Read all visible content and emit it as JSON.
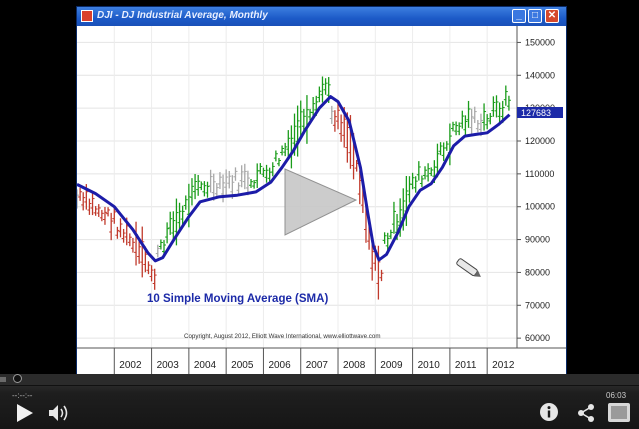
{
  "window": {
    "title": "DJI - DJ Industrial Average, Monthly",
    "minimize_glyph": "_",
    "maximize_glyph": "□",
    "close_glyph": "✕"
  },
  "chart_data": {
    "type": "line",
    "title": "DJI - DJ Industrial Average, Monthly",
    "annotation": "10 Simple Moving Average (SMA)",
    "copyright": "Copyright, August 2012, Elliott Wave International, www.elliottwave.com",
    "x_tick_labels": [
      "2002",
      "2003",
      "2004",
      "2005",
      "2006",
      "2007",
      "2008",
      "2009",
      "2010",
      "2011",
      "2012"
    ],
    "y_tick_labels": [
      "150000",
      "140000",
      "130000",
      "120000",
      "110000",
      "100000",
      "90000",
      "80000",
      "70000",
      "60000"
    ],
    "ylim": [
      57000,
      155000
    ],
    "last_value_label": "127683",
    "last_value": 127683,
    "series": [
      {
        "name": "10 Simple Moving Average (SMA)",
        "points": [
          [
            2001.0,
            106800
          ],
          [
            2001.5,
            104000
          ],
          [
            2002.0,
            100000
          ],
          [
            2002.5,
            93000
          ],
          [
            2002.9,
            86000
          ],
          [
            2003.1,
            83500
          ],
          [
            2003.3,
            84500
          ],
          [
            2003.6,
            90000
          ],
          [
            2004.0,
            97000
          ],
          [
            2004.3,
            101500
          ],
          [
            2004.8,
            103000
          ],
          [
            2005.3,
            103500
          ],
          [
            2005.8,
            104500
          ],
          [
            2006.2,
            107500
          ],
          [
            2006.5,
            112000
          ],
          [
            2006.8,
            117000
          ],
          [
            2007.1,
            123000
          ],
          [
            2007.5,
            130000
          ],
          [
            2007.8,
            133500
          ],
          [
            2008.0,
            132000
          ],
          [
            2008.3,
            126000
          ],
          [
            2008.6,
            112000
          ],
          [
            2008.8,
            98000
          ],
          [
            2008.95,
            88000
          ],
          [
            2009.1,
            83800
          ],
          [
            2009.3,
            85500
          ],
          [
            2009.6,
            92000
          ],
          [
            2009.9,
            100000
          ],
          [
            2010.2,
            105000
          ],
          [
            2010.5,
            107000
          ],
          [
            2010.8,
            112000
          ],
          [
            2011.1,
            118500
          ],
          [
            2011.4,
            121500
          ],
          [
            2011.7,
            122000
          ],
          [
            2012.0,
            122500
          ],
          [
            2012.3,
            125000
          ],
          [
            2012.6,
            128000
          ]
        ]
      }
    ],
    "grid": true,
    "colors": {
      "up_bar": "#1a9c1a",
      "down_bar": "#c0392b",
      "neutral_bar": "#a8a8a8",
      "sma": "#1c1ca8",
      "play_overlay": "#c8c8c8"
    }
  },
  "player": {
    "elapsed": "--:--:--",
    "duration": "06:03",
    "progress": 0.01
  },
  "icons": {
    "play": "play-icon",
    "volume": "volume-icon",
    "info": "info-icon",
    "share": "share-icon",
    "fullscreen": "fullscreen-icon",
    "pen": "pen-icon"
  }
}
